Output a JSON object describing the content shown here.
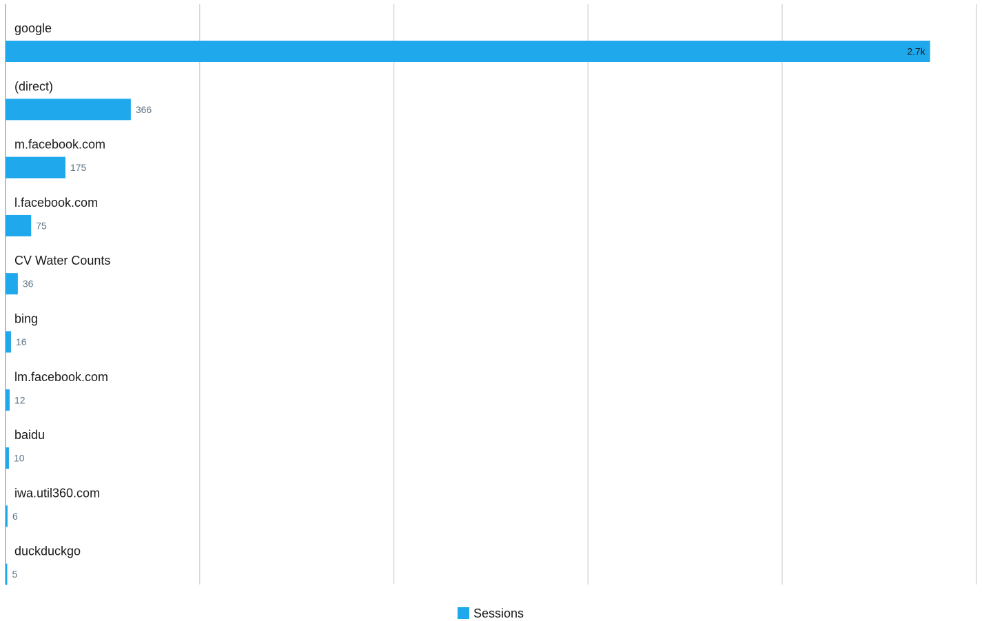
{
  "chart_data": {
    "type": "bar",
    "orientation": "horizontal",
    "categories": [
      "google",
      "(direct)",
      "m.facebook.com",
      "l.facebook.com",
      "CV Water Counts",
      "bing",
      "lm.facebook.com",
      "baidu",
      "iwa.util360.com",
      "duckduckgo"
    ],
    "series": [
      {
        "name": "Sessions",
        "values": [
          2700,
          366,
          175,
          75,
          36,
          16,
          12,
          10,
          6,
          5
        ],
        "labels": [
          "2.7k",
          "366",
          "175",
          "75",
          "36",
          "16",
          "12",
          "10",
          "6",
          "5"
        ],
        "color": "#1fa8ec"
      }
    ],
    "xlim": [
      0,
      2835
    ],
    "grid": true,
    "legend_position": "bottom-center"
  },
  "colors": {
    "bar": "#1fa8ec",
    "grid": "#d5d9de",
    "axis": "#9aa7b3",
    "value_text": "#5d7385"
  }
}
